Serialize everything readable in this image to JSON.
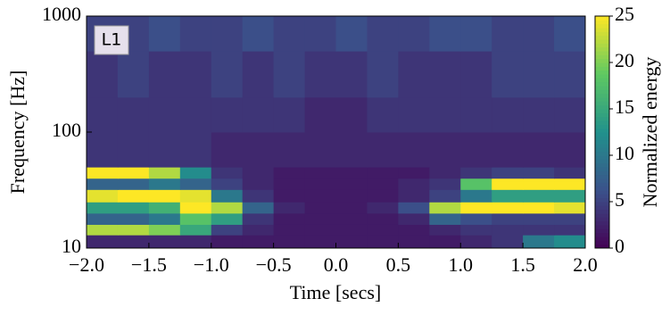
{
  "chart_data": {
    "type": "heatmap",
    "annotation": "L1",
    "xlabel": "Time [secs]",
    "ylabel": "Frequency [Hz]",
    "colorbar_label": "Normalized energy",
    "xlim": [
      -2,
      2
    ],
    "xticks": [
      {
        "value": -2,
        "label": "−2.0"
      },
      {
        "value": -1.5,
        "label": "−1.5"
      },
      {
        "value": -1,
        "label": "−1.0"
      },
      {
        "value": -0.5,
        "label": "−0.5"
      },
      {
        "value": 0,
        "label": "0.0"
      },
      {
        "value": 0.5,
        "label": "0.5"
      },
      {
        "value": 1,
        "label": "1.0"
      },
      {
        "value": 1.5,
        "label": "1.5"
      },
      {
        "value": 2,
        "label": "2.0"
      }
    ],
    "ylim": [
      10,
      1000
    ],
    "yticks": [
      10,
      100,
      1000
    ],
    "log_y": true,
    "clim": [
      0,
      25
    ],
    "cticks": [
      0,
      5,
      10,
      15,
      20,
      25
    ],
    "colormap": [
      "#440154",
      "#3b528b",
      "#21918c",
      "#5ec962",
      "#fde725"
    ],
    "xbins": [
      -2,
      -1.75,
      -1.5,
      -1.25,
      -1,
      -0.75,
      -0.5,
      -0.25,
      0,
      0.25,
      0.5,
      0.75,
      1,
      1.25,
      1.5,
      1.75,
      2
    ],
    "ybins": [
      10,
      13,
      16,
      20,
      25,
      32,
      40,
      50,
      100,
      200,
      500,
      1000
    ],
    "z": [
      [
        3,
        3,
        3,
        3,
        2,
        2,
        2,
        2,
        2,
        2,
        2,
        2,
        3,
        4,
        10,
        12
      ],
      [
        22,
        22,
        20,
        15,
        5,
        3,
        2,
        2,
        2,
        2,
        2,
        3,
        4,
        4,
        4,
        4
      ],
      [
        8,
        8,
        10,
        18,
        14,
        4,
        2,
        2,
        2,
        2,
        3,
        8,
        6,
        5,
        5,
        5
      ],
      [
        14,
        14,
        16,
        25,
        22,
        8,
        3,
        2,
        2,
        3,
        6,
        22,
        25,
        25,
        25,
        24
      ],
      [
        24,
        25,
        25,
        24,
        10,
        4,
        2,
        2,
        2,
        2,
        3,
        5,
        10,
        14,
        14,
        14
      ],
      [
        8,
        8,
        10,
        8,
        5,
        3,
        2,
        2,
        2,
        2,
        3,
        4,
        18,
        25,
        25,
        25
      ],
      [
        25,
        25,
        22,
        12,
        4,
        3,
        2,
        2,
        2,
        2,
        2,
        3,
        4,
        5,
        5,
        4
      ],
      [
        4,
        4,
        4,
        4,
        3,
        3,
        3,
        3,
        3,
        3,
        3,
        3,
        3,
        3,
        3,
        3
      ],
      [
        4,
        4,
        4,
        4,
        4,
        4,
        4,
        3,
        3,
        4,
        4,
        4,
        4,
        4,
        4,
        4
      ],
      [
        4,
        5,
        4,
        4,
        5,
        4,
        5,
        4,
        4,
        5,
        4,
        4,
        4,
        5,
        5,
        5
      ],
      [
        5,
        5,
        6,
        5,
        5,
        6,
        5,
        5,
        6,
        5,
        5,
        6,
        6,
        5,
        5,
        6
      ]
    ]
  }
}
